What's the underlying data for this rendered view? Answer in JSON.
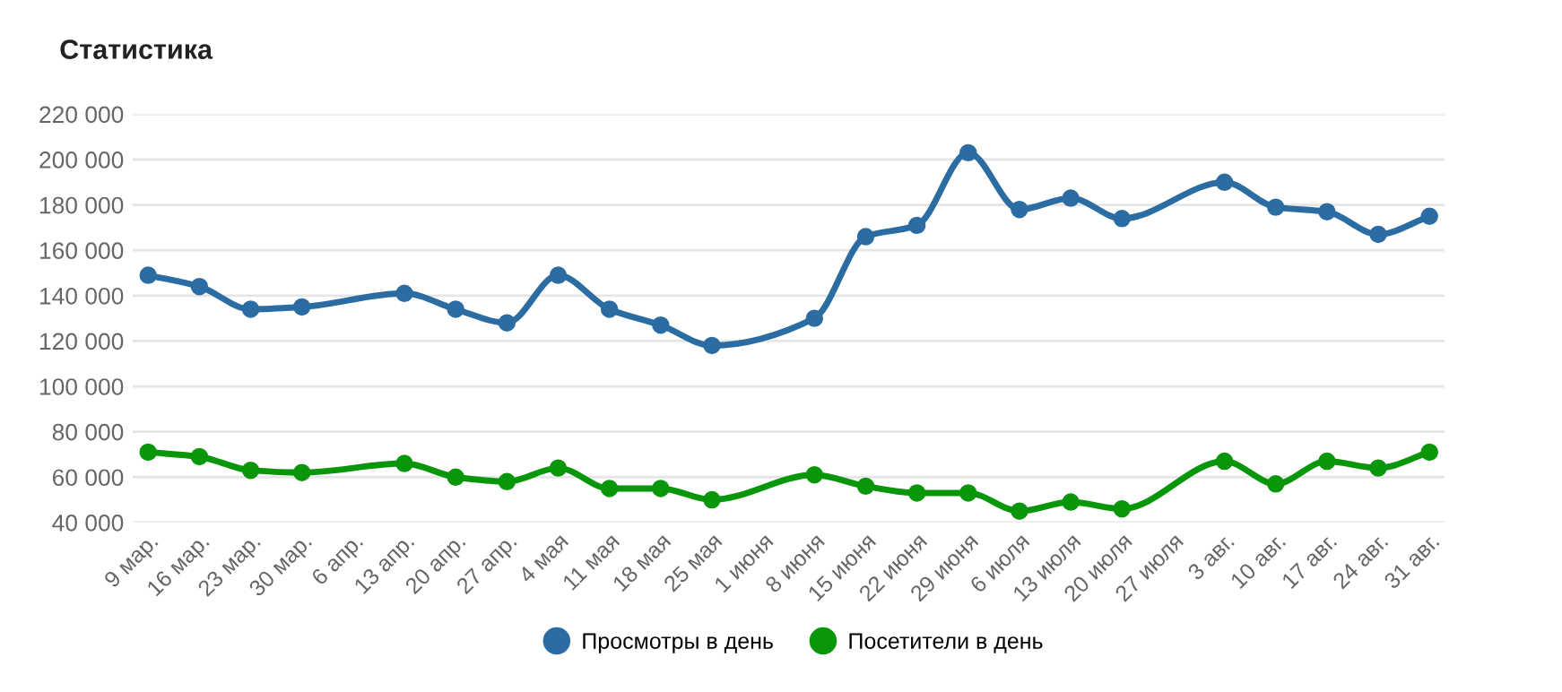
{
  "chart_data": {
    "type": "line",
    "title": "Статистика",
    "categories": [
      "9 мар.",
      "16 мар.",
      "23 мар.",
      "30 мар.",
      "6 апр.",
      "13 апр.",
      "20 апр.",
      "27 апр.",
      "4 мая",
      "11 мая",
      "18 мая",
      "25 мая",
      "1 июня",
      "8 июня",
      "15 июня",
      "22 июня",
      "29 июня",
      "6 июля",
      "13 июля",
      "20 июля",
      "27 июля",
      "3 авг.",
      "10 авг.",
      "17 авг.",
      "24 авг.",
      "31 авг."
    ],
    "series": [
      {
        "name": "Просмотры в день",
        "color": "#2b6ca3",
        "values": [
          149000,
          144000,
          134000,
          135000,
          null,
          141000,
          134000,
          128000,
          149000,
          134000,
          127000,
          118000,
          null,
          130000,
          166000,
          171000,
          203000,
          178000,
          183000,
          174000,
          null,
          190000,
          179000,
          177000,
          167000,
          175000
        ]
      },
      {
        "name": "Посетители в день",
        "color": "#0a960a",
        "values": [
          71000,
          69000,
          63000,
          62000,
          null,
          66000,
          60000,
          58000,
          64000,
          55000,
          55000,
          50000,
          null,
          61000,
          56000,
          53000,
          53000,
          45000,
          49000,
          46000,
          null,
          67000,
          57000,
          67000,
          64000,
          71000
        ]
      }
    ],
    "ylim": [
      40000,
      220000
    ],
    "yticks": [
      {
        "value": 40000,
        "label": "40 000"
      },
      {
        "value": 60000,
        "label": "60 000"
      },
      {
        "value": 80000,
        "label": "80 000"
      },
      {
        "value": 100000,
        "label": "100 000"
      },
      {
        "value": 120000,
        "label": "120 000"
      },
      {
        "value": 140000,
        "label": "140 000"
      },
      {
        "value": 160000,
        "label": "160 000"
      },
      {
        "value": 180000,
        "label": "180 000"
      },
      {
        "value": 200000,
        "label": "200 000"
      },
      {
        "value": 220000,
        "label": "220 000"
      }
    ],
    "grid": "y",
    "legend": "bottom",
    "marker": "circle",
    "line_style": "solid"
  }
}
